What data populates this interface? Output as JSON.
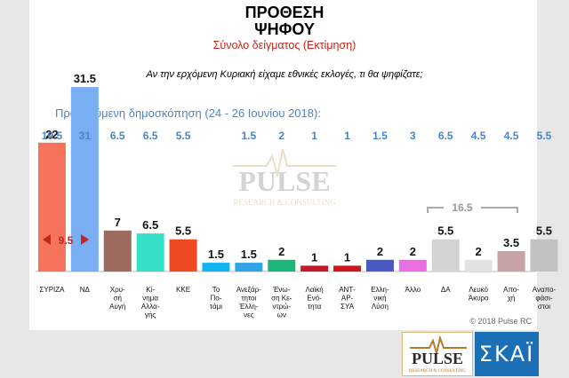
{
  "header": {
    "title_line1": "ΠΡΟΘΕΣΗ",
    "title_line2": "ΨΗΦΟΥ",
    "subtitle": "Σύνολο δείγματος   (Εκτίμηση)",
    "question": "Αν την ερχόμενη Κυριακή είχαμε εθνικές εκλογές, τι θα ψηφίζατε;"
  },
  "previous_label": "Προηγούμενη δημοσκόπηση (24 - 26 Ιουνίου 2018):",
  "gap_annotation": "9.5",
  "group_annotation": "16.5",
  "watermark": {
    "word": "PULSE",
    "sub": "RESEARCH & CONSULTING"
  },
  "copyright": "© 2018 Pulse RC",
  "logos": {
    "pulse_word": "PULSE",
    "pulse_sub": "RESEARCH & CONSULTING",
    "skai": "ΣΚΑΪ"
  },
  "chart_data": {
    "type": "bar",
    "ylim": [
      0,
      35
    ],
    "categories": [
      [
        "ΣΥΡΙΖΑ"
      ],
      [
        "ΝΔ"
      ],
      [
        "Χρυ-",
        "σή",
        "Αυγή"
      ],
      [
        "Κί-",
        "νημα",
        "Αλλα-",
        "γής"
      ],
      [
        "ΚΚΕ"
      ],
      [
        "Το",
        "Πο-",
        "τάμι"
      ],
      [
        "Ανεξάρ-",
        "τητοι",
        "Έλλη-",
        "νες"
      ],
      [
        "Ένω-",
        "ση Κε-",
        "ντρώ-",
        "ων"
      ],
      [
        "Λαϊκή",
        "Ενό-",
        "τητα"
      ],
      [
        "ΑΝΤ-",
        "ΑΡ-",
        "ΣΥΑ"
      ],
      [
        "Ελλη-",
        "νική",
        "Λύση"
      ],
      [
        "Άλλο"
      ],
      [
        "ΔΑ"
      ],
      [
        "Λευκό",
        "Άκυρο"
      ],
      [
        "Απο-",
        "χή"
      ],
      [
        "Αναπο-",
        "φάσι-",
        "στοι"
      ]
    ],
    "values": [
      22,
      31.5,
      7,
      6.5,
      5.5,
      1.5,
      1.5,
      2,
      1,
      1,
      2,
      2,
      5.5,
      2,
      3.5,
      5.5
    ],
    "value_labels": [
      "22",
      "31.5",
      "7",
      "6.5",
      "5.5",
      "1.5",
      "1.5",
      "2",
      "1",
      "1",
      "2",
      "2",
      "5.5",
      "2",
      "3.5",
      "5.5"
    ],
    "previous": [
      "19.5",
      "31",
      "6.5",
      "6.5",
      "5.5",
      "",
      "1.5",
      "2",
      "1",
      "1",
      "1.5",
      "3",
      "6.5",
      "4.5",
      "4.5",
      "5.5"
    ],
    "colors": [
      "#f4735a",
      "#7aaef2",
      "#9b6b5e",
      "#33e0c6",
      "#f04a24",
      "#12b5f0",
      "#2ea3e8",
      "#1bb77a",
      "#c3182a",
      "#d0161d",
      "#4a59c4",
      "#ea6fe2",
      "#d3d3d3",
      "#e2e2e2",
      "#c7a3a3",
      "#c2c2c2"
    ]
  }
}
